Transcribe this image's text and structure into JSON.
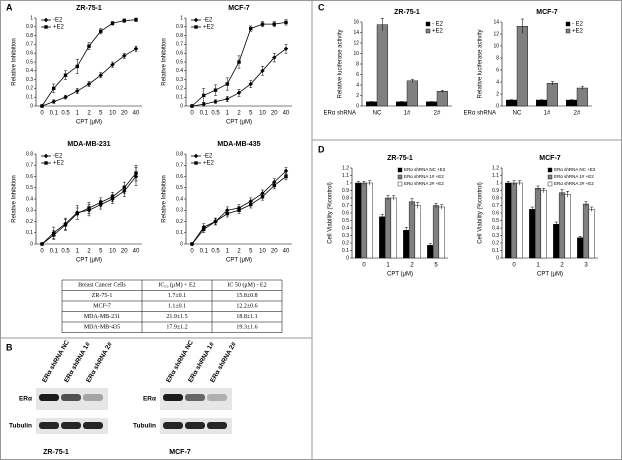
{
  "panel_labels": [
    "A",
    "B",
    "C",
    "D"
  ],
  "chart_data": [
    {
      "type": "line",
      "title": "ZR-75-1",
      "xlabel": "CPT (μM)",
      "ylabel": "Relative Inhibition",
      "legend": "upper left",
      "categories": [
        "0",
        "0.1",
        "0.5",
        "1",
        "2",
        "5",
        "10",
        "20",
        "40"
      ],
      "series": [
        {
          "name": "-E2",
          "color": "#000000",
          "marker": "diamond",
          "values": [
            0,
            0.05,
            0.1,
            0.17,
            0.25,
            0.35,
            0.47,
            0.57,
            0.65
          ],
          "errors": [
            0,
            0.02,
            0.02,
            0.03,
            0.03,
            0.03,
            0.03,
            0.03,
            0.03
          ]
        },
        {
          "name": "+E2",
          "color": "#000000",
          "marker": "square",
          "values": [
            0,
            0.2,
            0.35,
            0.45,
            0.68,
            0.85,
            0.94,
            0.97,
            0.98
          ],
          "errors": [
            0,
            0.05,
            0.05,
            0.08,
            0.04,
            0.03,
            0.02,
            0.02,
            0.02
          ]
        }
      ],
      "ylim": [
        0,
        1
      ],
      "yticks": [
        0,
        0.1,
        0.2,
        0.3,
        0.4,
        0.5,
        0.6,
        0.7,
        0.8,
        0.9,
        1
      ]
    },
    {
      "type": "line",
      "title": "MCF-7",
      "xlabel": "CPT (μM)",
      "ylabel": "Relative Inhibition",
      "legend": "upper left",
      "categories": [
        "0",
        "0.1",
        "0.5",
        "1",
        "2",
        "5",
        "10",
        "20",
        "40"
      ],
      "series": [
        {
          "name": "-E2",
          "color": "#000000",
          "marker": "diamond",
          "values": [
            0,
            0.02,
            0.05,
            0.08,
            0.15,
            0.25,
            0.4,
            0.55,
            0.65
          ],
          "errors": [
            0,
            0.02,
            0.02,
            0.03,
            0.04,
            0.04,
            0.05,
            0.05,
            0.05
          ]
        },
        {
          "name": "+E2",
          "color": "#000000",
          "marker": "square",
          "values": [
            0,
            0.12,
            0.18,
            0.25,
            0.5,
            0.88,
            0.93,
            0.93,
            0.95
          ],
          "errors": [
            0,
            0.08,
            0.06,
            0.07,
            0.07,
            0.03,
            0.03,
            0.03,
            0.03
          ]
        }
      ],
      "ylim": [
        0,
        1
      ],
      "yticks": [
        0,
        0.1,
        0.2,
        0.3,
        0.4,
        0.5,
        0.6,
        0.7,
        0.8,
        0.9,
        1
      ]
    },
    {
      "type": "line",
      "title": "MDA-MB-231",
      "xlabel": "CPT (μM)",
      "ylabel": "Relative Inhibition",
      "legend": "upper left",
      "categories": [
        "0",
        "0.1",
        "0.5",
        "1",
        "2",
        "5",
        "10",
        "20",
        "40"
      ],
      "series": [
        {
          "name": "-E2",
          "color": "#000000",
          "marker": "diamond",
          "values": [
            0,
            0.1,
            0.18,
            0.28,
            0.3,
            0.35,
            0.4,
            0.47,
            0.6
          ],
          "errors": [
            0,
            0.05,
            0.05,
            0.06,
            0.05,
            0.04,
            0.04,
            0.05,
            0.08
          ]
        },
        {
          "name": "+E2",
          "color": "#000000",
          "marker": "square",
          "values": [
            0,
            0.08,
            0.17,
            0.27,
            0.32,
            0.37,
            0.42,
            0.5,
            0.63
          ],
          "errors": [
            0,
            0.04,
            0.05,
            0.05,
            0.05,
            0.04,
            0.04,
            0.05,
            0.07
          ]
        }
      ],
      "ylim": [
        0,
        0.8
      ],
      "yticks": [
        0,
        0.1,
        0.2,
        0.3,
        0.4,
        0.5,
        0.6,
        0.7,
        0.8
      ]
    },
    {
      "type": "line",
      "title": "MDA-MB-435",
      "xlabel": "CPT (μM)",
      "ylabel": "Relative Inhibition",
      "legend": "upper left",
      "categories": [
        "0",
        "0.1",
        "0.5",
        "1",
        "2",
        "5",
        "10",
        "20",
        "40"
      ],
      "series": [
        {
          "name": "-E2",
          "color": "#000000",
          "marker": "diamond",
          "values": [
            0,
            0.15,
            0.2,
            0.3,
            0.32,
            0.38,
            0.45,
            0.55,
            0.65
          ],
          "errors": [
            0,
            0.03,
            0.03,
            0.03,
            0.03,
            0.03,
            0.03,
            0.03,
            0.03
          ]
        },
        {
          "name": "+E2",
          "color": "#000000",
          "marker": "square",
          "values": [
            0,
            0.13,
            0.2,
            0.27,
            0.3,
            0.35,
            0.42,
            0.52,
            0.6
          ],
          "errors": [
            0,
            0.03,
            0.03,
            0.03,
            0.03,
            0.03,
            0.03,
            0.03,
            0.03
          ]
        }
      ],
      "ylim": [
        0,
        0.8
      ],
      "yticks": [
        0,
        0.1,
        0.2,
        0.3,
        0.4,
        0.5,
        0.6,
        0.7,
        0.8
      ]
    },
    {
      "type": "bar",
      "title": "ZR-75-1",
      "ylabel": "Relative luciferase activity",
      "x_row_label": "ERα shRNA",
      "legend": "upper right",
      "categories": [
        "NC",
        "1#",
        "2#"
      ],
      "series": [
        {
          "name": "- E2",
          "color": "#000000",
          "values": [
            0.8,
            0.8,
            0.8
          ],
          "errors": [
            0.05,
            0.05,
            0.05
          ]
        },
        {
          "name": "+E2",
          "color": "#808080",
          "values": [
            15.5,
            4.8,
            2.8
          ],
          "errors": [
            1.2,
            0.3,
            0.2
          ]
        }
      ],
      "ylim": [
        0,
        16
      ],
      "yticks": [
        0,
        2,
        4,
        6,
        8,
        10,
        12,
        14,
        16
      ]
    },
    {
      "type": "bar",
      "title": "MCF-7",
      "ylabel": "Relative luciferase activity",
      "x_row_label": "ERα shRNA",
      "legend": "upper right",
      "categories": [
        "NC",
        "1#",
        "2#"
      ],
      "series": [
        {
          "name": "- E2",
          "color": "#000000",
          "values": [
            1,
            1,
            1
          ],
          "errors": [
            0.05,
            0.05,
            0.05
          ]
        },
        {
          "name": "+E2",
          "color": "#808080",
          "values": [
            13.3,
            3.8,
            3
          ],
          "errors": [
            1.2,
            0.3,
            0.3
          ]
        }
      ],
      "ylim": [
        0,
        14
      ],
      "yticks": [
        0,
        2,
        4,
        6,
        8,
        10,
        12,
        14
      ]
    },
    {
      "type": "bar",
      "title": "ZR-75-1",
      "xlabel": "CPT (μM)",
      "ylabel": "Cell Viability (%control)",
      "legend": "upper right",
      "categories": [
        "0",
        "1",
        "2",
        "5"
      ],
      "series": [
        {
          "name": "ERα shRNA NC +E2",
          "color": "#000000",
          "values": [
            1,
            0.55,
            0.37,
            0.17
          ],
          "errors": [
            0.02,
            0.03,
            0.04,
            0.02
          ]
        },
        {
          "name": "ERα shRNA 1# +E2",
          "color": "#808080",
          "values": [
            1,
            0.8,
            0.75,
            0.7
          ],
          "errors": [
            0.02,
            0.03,
            0.04,
            0.03
          ]
        },
        {
          "name": "ERα shRNA 2# +E2",
          "color": "#ffffff",
          "values": [
            1,
            0.8,
            0.7,
            0.68
          ],
          "errors": [
            0.03,
            0.03,
            0.04,
            0.03
          ]
        }
      ],
      "ylim": [
        0,
        1.2
      ],
      "yticks": [
        0,
        0.1,
        0.2,
        0.3,
        0.4,
        0.5,
        0.6,
        0.7,
        0.8,
        0.9,
        1,
        1.1,
        1.2
      ]
    },
    {
      "type": "bar",
      "title": "MCF-7",
      "xlabel": "CPT (μM)",
      "ylabel": "Cell Viability (%control)",
      "legend": "upper right",
      "categories": [
        "0",
        "1",
        "2",
        "3"
      ],
      "series": [
        {
          "name": "ERα shRNA NC +E2",
          "color": "#000000",
          "values": [
            1,
            0.65,
            0.45,
            0.27
          ],
          "errors": [
            0.02,
            0.03,
            0.03,
            0.02
          ]
        },
        {
          "name": "ERα shRNA 1# +E2",
          "color": "#808080",
          "values": [
            1,
            0.93,
            0.87,
            0.72
          ],
          "errors": [
            0.03,
            0.03,
            0.04,
            0.03
          ]
        },
        {
          "name": "ERα shRNA 2# +E2",
          "color": "#ffffff",
          "values": [
            1,
            0.9,
            0.85,
            0.65
          ],
          "errors": [
            0.03,
            0.03,
            0.04,
            0.03
          ]
        }
      ],
      "ylim": [
        0,
        1.2
      ],
      "yticks": [
        0,
        0.1,
        0.2,
        0.3,
        0.4,
        0.5,
        0.6,
        0.7,
        0.8,
        0.9,
        1,
        1.1,
        1.2
      ]
    }
  ],
  "table": {
    "header": [
      "Breast Cancer Cells",
      "IC₅₀ (μM) + E2",
      "IC 50 (μM) - E2"
    ],
    "rows": [
      [
        "ZR-75-1",
        "1.7±0.1",
        "15.8±0.8"
      ],
      [
        "MCF-7",
        "1.1±0.1",
        "12.2±0.6"
      ],
      [
        "MDA-MB-231",
        "21.9±1.5",
        "18.8±1.1"
      ],
      [
        "MDA-MB-435",
        "17.9±1.2",
        "19.3±1.6"
      ]
    ]
  },
  "blot": [
    {
      "cell_line": "ZR-75-1",
      "lanes": [
        "ERα shRNA NC",
        "ERα shRNA 1#",
        "ERα shRNA 2#"
      ],
      "rows": [
        "ERα",
        "Tubulin"
      ]
    },
    {
      "cell_line": "MCF-7",
      "lanes": [
        "ERα shRNA NC",
        "ERα shRNA 1#",
        "ERα shRNA 2#"
      ],
      "rows": [
        "ERα",
        "Tubulin"
      ]
    }
  ]
}
